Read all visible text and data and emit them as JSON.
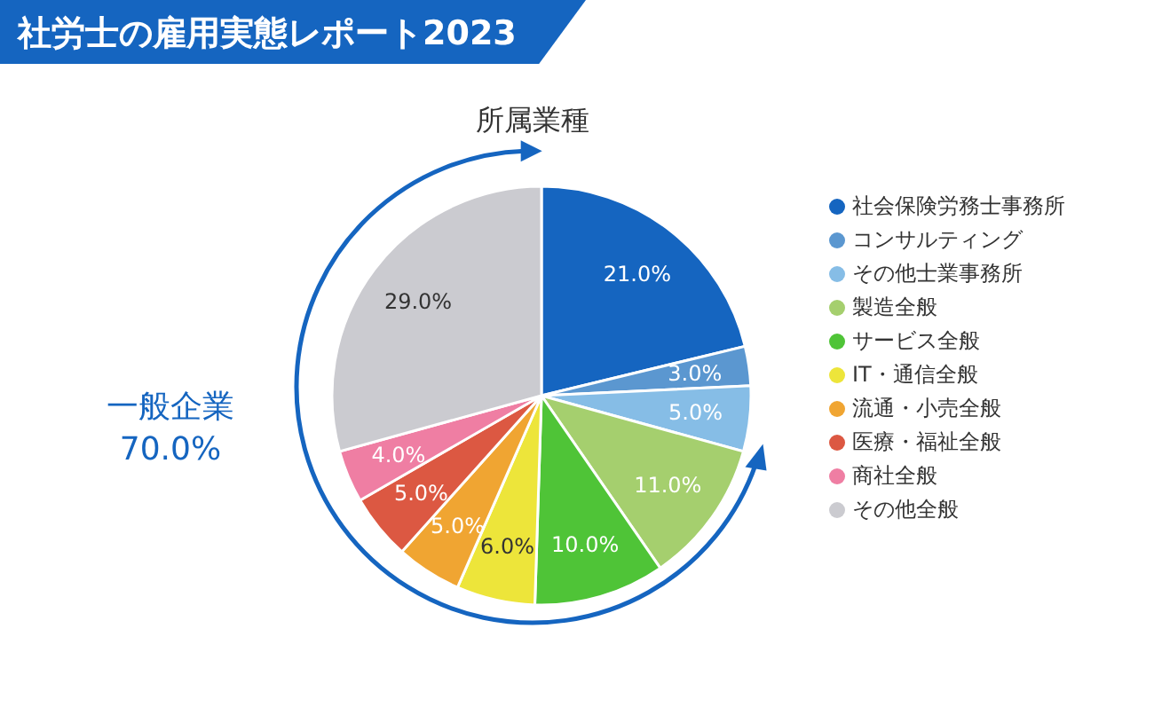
{
  "chart_data": {
    "type": "pie",
    "title": "社労士の雇用実態レポート2023",
    "subtitle": "所属業種",
    "categories": [
      "社会保険労務士事務所",
      "コンサルティング",
      "その他士業事務所",
      "製造全般",
      "サービス全般",
      "IT・通信全般",
      "流通・小売全般",
      "医療・福祉全般",
      "商社全般",
      "その他全般"
    ],
    "values": [
      21.0,
      3.0,
      5.0,
      11.0,
      10.0,
      6.0,
      5.0,
      5.0,
      4.0,
      29.0
    ],
    "value_labels": [
      "21.0%",
      "3.0%",
      "5.0%",
      "11.0%",
      "10.0%",
      "6.0%",
      "5.0%",
      "5.0%",
      "4.0%",
      "29.0%"
    ],
    "colors": [
      "#1565c0",
      "#5b97d0",
      "#86bde6",
      "#a5cf6e",
      "#4fc437",
      "#ede53a",
      "#f0a532",
      "#dc5842",
      "#ef7ea3",
      "#cbcbd0"
    ],
    "annotations": [
      "一般企業 70.0%"
    ],
    "legend": "right"
  }
}
